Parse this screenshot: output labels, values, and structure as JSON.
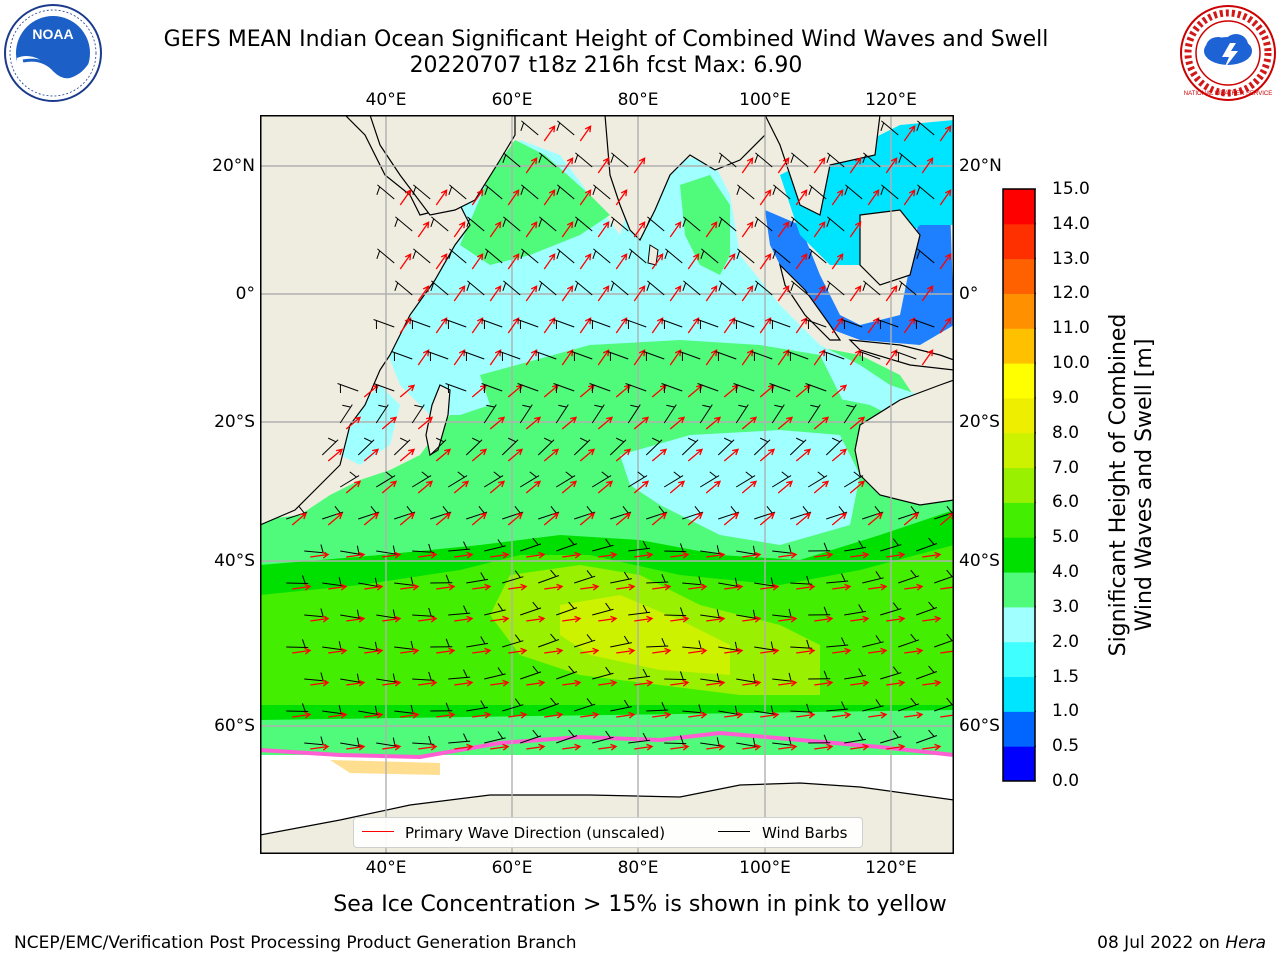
{
  "title": {
    "line1": "GEFS MEAN Indian Ocean Significant Height of Combined Wind Waves and Swell",
    "line2": "20220707 t18z 216h fcst   Max: 6.90"
  },
  "logos": {
    "left": {
      "name": "noaa-logo",
      "text": "NOAA"
    },
    "right": {
      "name": "national-weather-service-logo",
      "text": "NATIONAL WEATHER SERVICE"
    }
  },
  "map": {
    "lon_ticks": [
      "40°E",
      "60°E",
      "80°E",
      "100°E",
      "120°E"
    ],
    "lat_ticks": [
      "20°N",
      "0°",
      "20°S",
      "40°S",
      "60°S"
    ],
    "land_color": "#efede0",
    "ice_color": "#ffffff",
    "grid_color": "#b0b0b0"
  },
  "legend": {
    "wave_label": "Primary Wave Direction (unscaled)",
    "wave_color": "#ff0000",
    "barb_label": "Wind Barbs",
    "barb_color": "#000000"
  },
  "colorbar": {
    "label_line1": "Significant Height of Combined",
    "label_line2": "Wind Waves and Swell [m]",
    "ticks": [
      "0.0",
      "0.5",
      "1.0",
      "1.5",
      "2.0",
      "3.0",
      "4.0",
      "5.0",
      "6.0",
      "7.0",
      "8.0",
      "9.0",
      "10.0",
      "11.0",
      "12.0",
      "13.0",
      "14.0",
      "15.0"
    ],
    "colors": [
      "#0000ff",
      "#0066ff",
      "#00e5ff",
      "#40ffff",
      "#a0ffff",
      "#50fa7a",
      "#00e000",
      "#44ee00",
      "#99f000",
      "#ccf200",
      "#eeee00",
      "#ffff00",
      "#ffc000",
      "#ff9000",
      "#ff6000",
      "#ff3000",
      "#ff0000"
    ]
  },
  "caption": "Sea Ice Concentration > 15% is shown in pink to yellow",
  "footer": {
    "left": "NCEP/EMC/Verification Post Processing Product Generation Branch",
    "right_date": "08 Jul 2022 on",
    "right_host": "Hera"
  }
}
